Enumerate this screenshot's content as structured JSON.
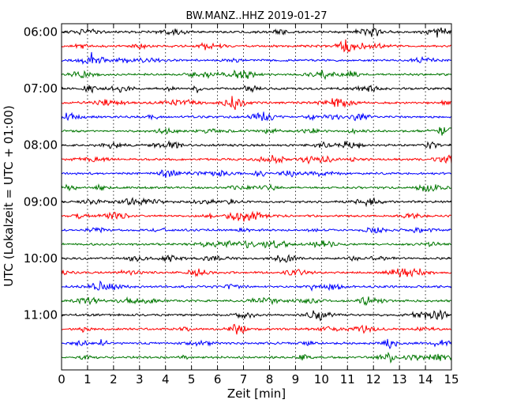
{
  "chart_data": {
    "type": "line",
    "title": "BW.MANZ..HHZ 2019-01-27",
    "xlabel": "Zeit  [min]",
    "ylabel": "UTC (Lokalzeit = UTC + 01:00)",
    "xlim": [
      0,
      15
    ],
    "xticks": [
      0,
      1,
      2,
      3,
      4,
      5,
      6,
      7,
      8,
      9,
      10,
      11,
      12,
      13,
      14,
      15
    ],
    "xtick_labels": [
      "0",
      "1",
      "2",
      "3",
      "4",
      "5",
      "6",
      "7",
      "8",
      "9",
      "10",
      "11",
      "12",
      "13",
      "14",
      "15"
    ],
    "ytick_labels": [
      "06:00",
      "07:00",
      "08:00",
      "09:00",
      "10:00",
      "11:00"
    ],
    "ytick_rows": [
      0,
      4,
      8,
      12,
      16,
      20
    ],
    "grid": "vertical dotted",
    "trace_interval_min": 15,
    "trace_colors": [
      "#000000",
      "#ff0000",
      "#0000ff",
      "#007700"
    ],
    "traces": [
      {
        "start": "06:00"
      },
      {
        "start": "06:15"
      },
      {
        "start": "06:30"
      },
      {
        "start": "06:45"
      },
      {
        "start": "07:00"
      },
      {
        "start": "07:15"
      },
      {
        "start": "07:30"
      },
      {
        "start": "07:45"
      },
      {
        "start": "08:00"
      },
      {
        "start": "08:15"
      },
      {
        "start": "08:30"
      },
      {
        "start": "08:45"
      },
      {
        "start": "09:00"
      },
      {
        "start": "09:15"
      },
      {
        "start": "09:30"
      },
      {
        "start": "09:45"
      },
      {
        "start": "10:00"
      },
      {
        "start": "10:15"
      },
      {
        "start": "10:30"
      },
      {
        "start": "10:45"
      },
      {
        "start": "11:00"
      },
      {
        "start": "11:15"
      },
      {
        "start": "11:30"
      },
      {
        "start": "11:45"
      }
    ]
  }
}
